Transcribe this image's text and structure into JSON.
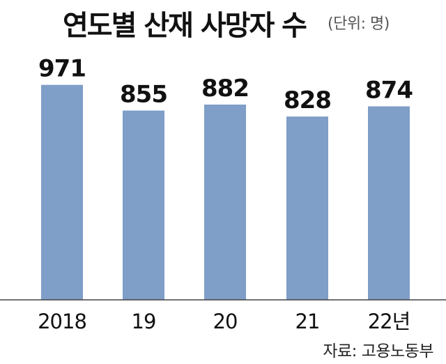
{
  "title": "연도별 산재 사망자 수",
  "unit_note": "(단위: 명)",
  "source": "자료: 고용노동부",
  "bar_color": "#7f9ec8",
  "chart_data": {
    "type": "bar",
    "title": "연도별 산재 사망자 수",
    "categories": [
      "2018",
      "19",
      "20",
      "21",
      "22년"
    ],
    "values": [
      971,
      855,
      882,
      828,
      874
    ],
    "value_labels": [
      "971",
      "855",
      "882",
      "828",
      "874"
    ],
    "ylim": [
      0,
      1000
    ],
    "grid": false,
    "legend": "none"
  }
}
